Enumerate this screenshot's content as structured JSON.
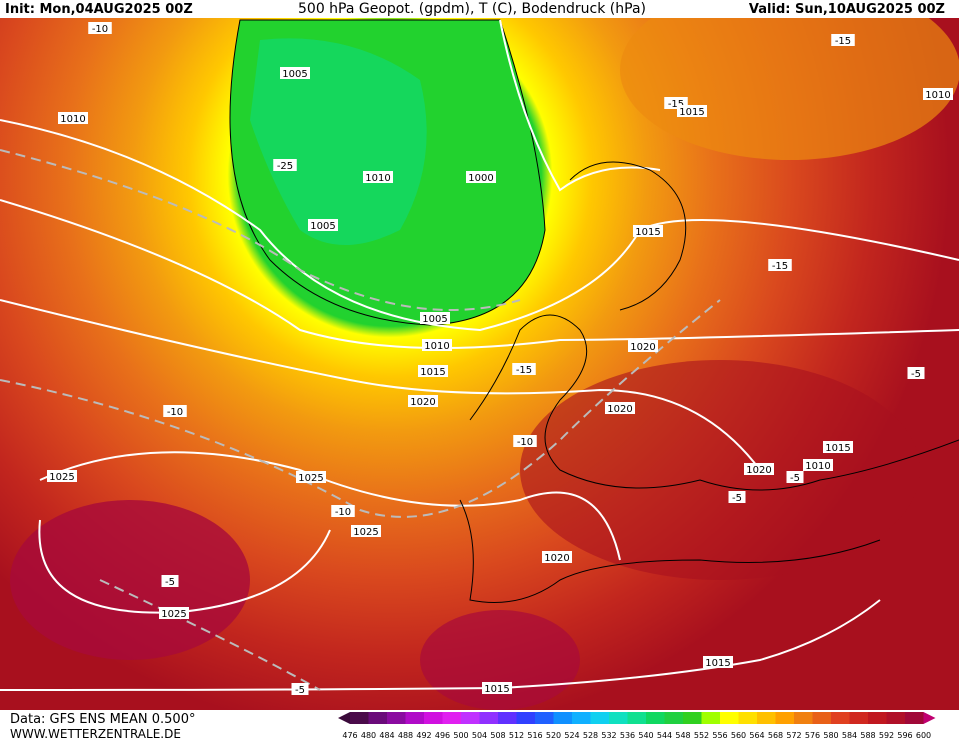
{
  "header": {
    "init": "Init: Mon,04AUG2025 00Z",
    "title": "500 hPa Geopot. (gpdm), T (C), Bodendruck (hPa)",
    "valid": "Valid: Sun,10AUG2025 00Z"
  },
  "contour_labels": [
    "-10",
    "-15",
    "1010",
    "1005",
    "-15",
    "1015",
    "1010",
    "-25",
    "1010",
    "1000",
    "1005",
    "1015",
    "-15",
    "1005",
    "1010",
    "1020",
    "1015",
    "-15",
    "1020",
    "-10",
    "1020",
    "-5",
    "-10",
    "1025",
    "1025",
    "1015",
    "1020",
    "1010",
    "-5",
    "-10",
    "-5",
    "1025",
    "1020",
    "-5",
    "1025",
    "1015",
    "1015",
    "-5"
  ],
  "footer": {
    "source": "Data: GFS ENS MEAN 0.500°",
    "website": "WWW.WETTERZENTRALE.DE"
  },
  "colorbar": {
    "labels": [
      "476",
      "480",
      "484",
      "488",
      "492",
      "496",
      "500",
      "504",
      "508",
      "512",
      "516",
      "520",
      "524",
      "528",
      "532",
      "536",
      "540",
      "544",
      "548",
      "552",
      "556",
      "560",
      "564",
      "568",
      "572",
      "576",
      "580",
      "584",
      "588",
      "592",
      "596",
      "600"
    ]
  }
}
